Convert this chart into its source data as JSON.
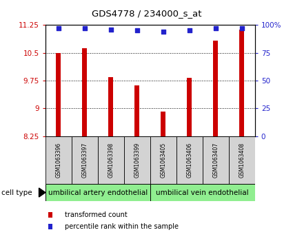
{
  "title": "GDS4778 / 234000_s_at",
  "samples": [
    "GSM1063396",
    "GSM1063397",
    "GSM1063398",
    "GSM1063399",
    "GSM1063405",
    "GSM1063406",
    "GSM1063407",
    "GSM1063408"
  ],
  "bar_values": [
    10.5,
    10.62,
    9.85,
    9.62,
    8.92,
    9.82,
    10.82,
    11.12
  ],
  "percentile_values": [
    97,
    97,
    96,
    95,
    94,
    95,
    97,
    97
  ],
  "bar_color": "#cc0000",
  "dot_color": "#2222cc",
  "ylim_left": [
    8.25,
    11.25
  ],
  "ylim_right": [
    0,
    100
  ],
  "yticks_left": [
    8.25,
    9.0,
    9.75,
    10.5,
    11.25
  ],
  "ytick_labels_left": [
    "8.25",
    "9",
    "9.75",
    "10.5",
    "11.25"
  ],
  "yticks_right": [
    0,
    25,
    50,
    75,
    100
  ],
  "ytick_labels_right": [
    "0",
    "25",
    "50",
    "75",
    "100%"
  ],
  "group1_label": "umbilical artery endothelial",
  "group2_label": "umbilical vein endothelial",
  "cell_type_label": "cell type",
  "legend1_label": "transformed count",
  "legend2_label": "percentile rank within the sample",
  "bar_width": 0.18,
  "group_bg": "#90ee90",
  "label_bg": "#d3d3d3",
  "tick_color_left": "#cc0000",
  "tick_color_right": "#2222cc"
}
